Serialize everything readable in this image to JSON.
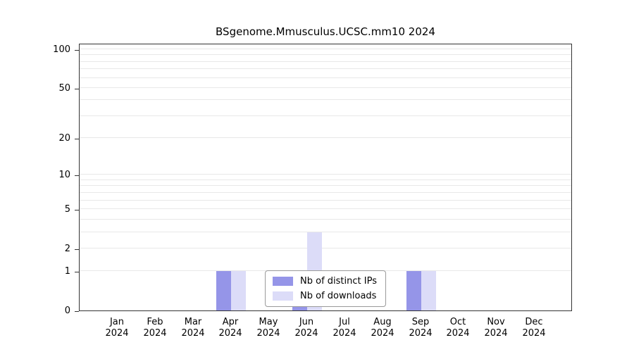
{
  "chart_data": {
    "type": "bar",
    "title": "BSgenome.Mmusculus.UCSC.mm10 2024",
    "categories": [
      "Jan",
      "Feb",
      "Mar",
      "Apr",
      "May",
      "Jun",
      "Jul",
      "Aug",
      "Sep",
      "Oct",
      "Nov",
      "Dec"
    ],
    "year": "2024",
    "series": [
      {
        "name": "Nb of distinct IPs",
        "color": "#9595e8",
        "values": [
          0,
          0,
          0,
          1,
          0,
          1,
          0,
          0,
          1,
          0,
          0,
          0
        ]
      },
      {
        "name": "Nb of downloads",
        "color": "#dcdcf8",
        "values": [
          0,
          0,
          0,
          1,
          0,
          3,
          0,
          0,
          1,
          0,
          0,
          0
        ]
      }
    ],
    "y_ticks": [
      0,
      1,
      2,
      5,
      10,
      20,
      50,
      100
    ],
    "minor_gridlines": [
      1,
      2,
      3,
      4,
      5,
      6,
      7,
      8,
      9,
      10,
      20,
      30,
      40,
      50,
      60,
      70,
      80,
      90,
      100
    ],
    "scale": "log1p",
    "ylim": [
      0,
      112
    ],
    "grid": true,
    "legend_position": "bottom-center"
  }
}
